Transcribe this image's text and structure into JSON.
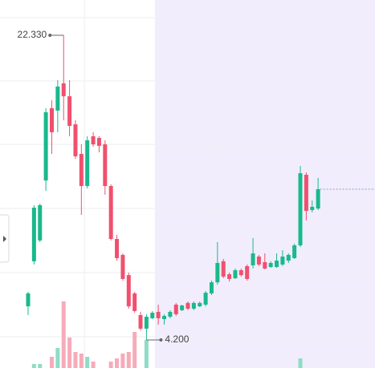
{
  "chart_data": {
    "type": "candlestick",
    "up_color": "#19b98c",
    "down_color": "#f0506e",
    "volume_up_color": "#8fdcc6",
    "volume_down_color": "#f6abb9",
    "ylim": [
      2.53,
      24.43
    ],
    "volume_ylim": [
      0,
      100
    ],
    "open": [
      6.2,
      8.88,
      10.12,
      13.69,
      17.99,
      17.85,
      19.47,
      18.7,
      17.03,
      15.27,
      13.36,
      16.32,
      16.22,
      15.84,
      13.36,
      10.21,
      9.26,
      8.06,
      6.97,
      5.68,
      4.87,
      5.49,
      5.87,
      5.44,
      5.58,
      6.3,
      5.97,
      6.4,
      6.06,
      6.2,
      6.3,
      6.97,
      7.63,
      8.88,
      8.11,
      7.87,
      8.35,
      8.59,
      8.64,
      9.16,
      8.83,
      8.54,
      8.54,
      8.69,
      8.92,
      9.07,
      9.83,
      14.03,
      11.93,
      12.02
    ],
    "high": [
      7.06,
      12.22,
      12.31,
      17.99,
      18.46,
      19.66,
      22.33,
      19.66,
      17.27,
      15.84,
      16.32,
      16.56,
      16.32,
      16.08,
      13.46,
      10.45,
      9.35,
      8.21,
      7.06,
      5.87,
      5.73,
      5.92,
      6.3,
      5.73,
      5.97,
      6.4,
      6.3,
      6.49,
      6.49,
      6.49,
      7.11,
      7.73,
      10.02,
      9.02,
      8.21,
      8.45,
      8.45,
      8.69,
      10.26,
      9.26,
      9.35,
      8.88,
      9.35,
      9.54,
      9.35,
      9.93,
      14.55,
      14.17,
      12.5,
      13.84
    ],
    "low": [
      5.68,
      8.69,
      10.02,
      13.07,
      15.27,
      16.56,
      17.27,
      16.32,
      14.98,
      11.64,
      13.22,
      15.7,
      15.36,
      12.84,
      10.12,
      8.92,
      7.73,
      6.06,
      5.82,
      4.77,
      4.2,
      5.44,
      5.11,
      5.11,
      5.49,
      5.63,
      5.92,
      5.97,
      5.97,
      6.16,
      6.2,
      6.87,
      7.49,
      7.87,
      7.68,
      7.83,
      7.97,
      7.73,
      8.45,
      8.59,
      8.4,
      8.49,
      8.49,
      8.59,
      8.78,
      9.02,
      9.73,
      11.31,
      11.79,
      11.93
    ],
    "close": [
      6.97,
      12.07,
      12.22,
      17.75,
      16.56,
      19.28,
      18.7,
      16.94,
      15.13,
      13.36,
      16.08,
      15.84,
      15.75,
      13.36,
      10.21,
      9.07,
      7.83,
      6.2,
      5.92,
      4.87,
      5.58,
      5.82,
      5.49,
      5.63,
      5.87,
      5.73,
      6.25,
      6.06,
      6.4,
      6.4,
      7.01,
      7.63,
      8.78,
      7.97,
      7.83,
      8.35,
      8.06,
      7.83,
      9.35,
      8.69,
      8.45,
      8.78,
      8.92,
      9.16,
      9.26,
      9.83,
      14.12,
      11.88,
      12.12,
      13.17
    ],
    "volume": [
      0,
      5,
      5,
      0,
      14,
      25,
      83,
      38,
      20,
      18,
      14,
      8,
      0,
      0,
      8,
      12,
      18,
      20,
      45,
      0,
      35,
      0,
      0,
      0,
      0,
      0,
      0,
      0,
      0,
      0,
      0,
      0,
      0,
      0,
      0,
      0,
      0,
      0,
      0,
      0,
      0,
      0,
      0,
      0,
      0,
      0,
      12,
      0,
      0,
      0
    ],
    "annotations": [
      {
        "label": "22.330",
        "value": 22.33
      },
      {
        "label": "4.200",
        "value": 4.2
      }
    ]
  }
}
